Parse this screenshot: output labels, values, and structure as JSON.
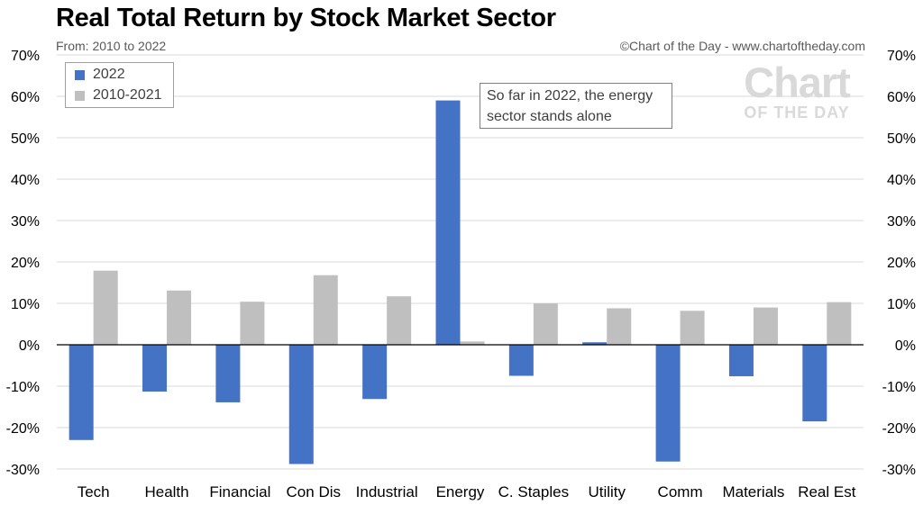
{
  "header": {
    "title": "Real Total Return by Stock Market Sector",
    "subtitle": "From: 2010 to 2022",
    "credit": "©Chart of the Day - www.chartoftheday.com"
  },
  "watermark": {
    "line1": "Chart",
    "line2": "OF THE DAY"
  },
  "annotation": {
    "line1": "So far in 2022, the energy",
    "line2": "sector stands alone"
  },
  "colors": {
    "series_2022": "#4472c4",
    "series_2010_2021": "#bfbfbf",
    "gridline": "#d9d9d9",
    "axis": "#000000"
  },
  "chart_data": {
    "type": "bar",
    "title": "Real Total Return by Stock Market Sector",
    "subtitle": "From: 2010 to 2022",
    "categories": [
      "Tech",
      "Health",
      "Financial",
      "Con Dis",
      "Industrial",
      "Energy",
      "C. Staples",
      "Utility",
      "Comm",
      "Materials",
      "Real Est"
    ],
    "series": [
      {
        "name": "2022",
        "color": "#4472c4",
        "values": [
          -23,
          -11.3,
          -13.9,
          -28.8,
          -13.1,
          59,
          -7.5,
          0.6,
          -28.2,
          -7.6,
          -18.5
        ]
      },
      {
        "name": "2010-2021",
        "color": "#bfbfbf",
        "values": [
          17.9,
          13.1,
          10.4,
          16.8,
          11.7,
          0.8,
          10.0,
          8.8,
          8.2,
          9.0,
          10.3
        ]
      }
    ],
    "ylim": [
      -30,
      70
    ],
    "yticks": [
      "70%",
      "60%",
      "50%",
      "40%",
      "30%",
      "20%",
      "10%",
      "0%",
      "-10%",
      "-20%",
      "-30%"
    ],
    "ytick_values": [
      70,
      60,
      50,
      40,
      30,
      20,
      10,
      0,
      -10,
      -20,
      -30
    ],
    "grid": true,
    "legend_position": "top-left",
    "secondary_y_axis": true
  }
}
